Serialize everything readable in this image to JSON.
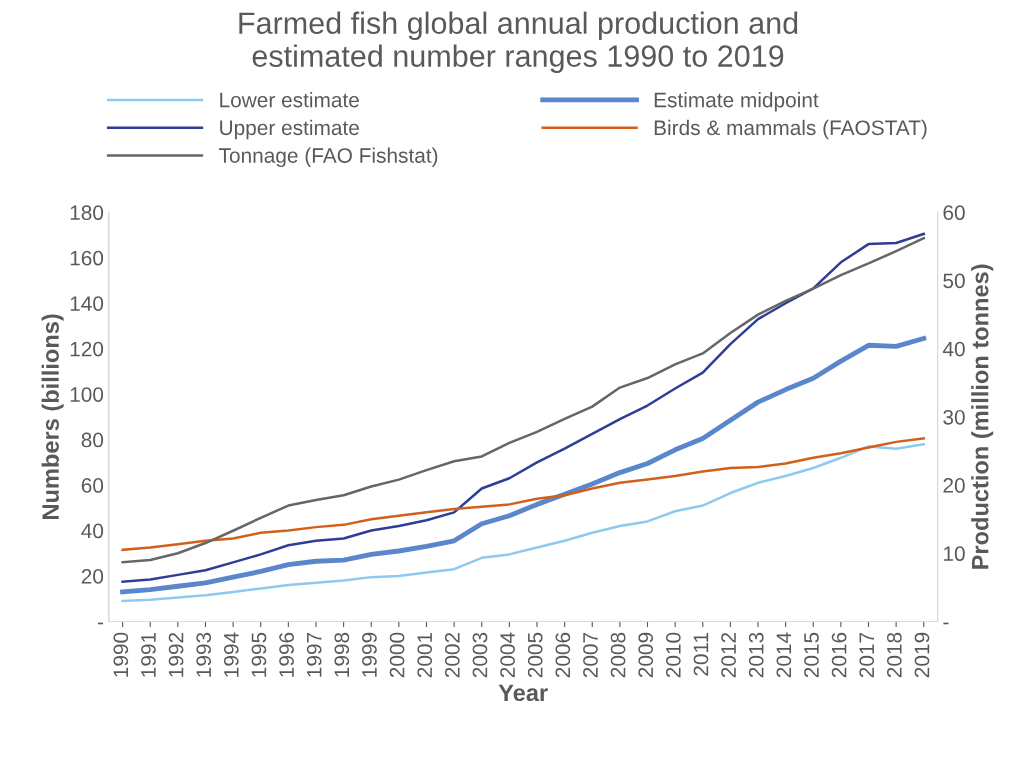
{
  "chart_data": {
    "type": "line",
    "title": "Farmed fish global annual production and\nestimated number ranges 1990 to 2019",
    "xlabel": "Year",
    "ylabel": "Numbers (billions)",
    "y2label": "Production (million tonnes)",
    "categories": [
      "1990",
      "1991",
      "1992",
      "1993",
      "1994",
      "1995",
      "1996",
      "1997",
      "1998",
      "1999",
      "2000",
      "2001",
      "2002",
      "2003",
      "2004",
      "2005",
      "2006",
      "2007",
      "2008",
      "2009",
      "2010",
      "2011",
      "2012",
      "2013",
      "2014",
      "2015",
      "2016",
      "2017",
      "2018",
      "2019"
    ],
    "series": [
      {
        "name": "Lower estimate",
        "color": "#8fc9f0",
        "values": [
          9,
          9.5,
          10.5,
          11.5,
          13,
          14.5,
          16,
          17,
          18,
          19.5,
          20,
          21.5,
          23,
          28,
          29.5,
          32.5,
          35.5,
          39,
          42,
          44,
          48.5,
          51,
          56.5,
          61,
          64,
          67.5,
          72,
          77,
          76,
          78
        ]
      },
      {
        "name": "Estimate midpoint",
        "color": "#5a86cc",
        "values": [
          13,
          14,
          15.5,
          17,
          19.5,
          22,
          25,
          26.5,
          27,
          29.5,
          31,
          33,
          35.5,
          43,
          46.5,
          51.5,
          56,
          60.5,
          65.5,
          69.5,
          75.5,
          80.5,
          88.5,
          96.5,
          102,
          107,
          114.5,
          121.5,
          121,
          124.5
        ]
      },
      {
        "name": "Upper estimate",
        "color": "#2e3d96",
        "values": [
          17.5,
          18.5,
          20.5,
          22.5,
          26,
          29.5,
          33.5,
          35.5,
          36.5,
          40,
          42,
          44.5,
          48,
          58.5,
          63,
          70,
          76,
          82.5,
          89,
          95,
          102.5,
          109.5,
          122,
          133,
          140,
          146.5,
          158,
          166,
          166.5,
          170.5
        ]
      },
      {
        "name": "Birds & mammals (FAOSTAT)",
        "color": "#d2601a",
        "values": [
          31.5,
          32.5,
          34,
          35.5,
          36.5,
          39,
          40,
          41.5,
          42.5,
          45,
          46.5,
          48,
          49.5,
          50.5,
          51.5,
          54,
          55.5,
          58.5,
          61,
          62.5,
          64,
          66,
          67.5,
          68,
          69.5,
          72,
          74,
          76.5,
          79,
          80.5
        ]
      },
      {
        "name": "Tonnage (FAO Fishstat)",
        "color": "#666666",
        "axis": "y2",
        "values": [
          8.7,
          9,
          10,
          11.5,
          13.3,
          15.2,
          17,
          17.8,
          18.5,
          19.8,
          20.8,
          22.2,
          23.5,
          24.2,
          26.2,
          27.8,
          29.7,
          31.5,
          34.3,
          35.7,
          37.7,
          39.3,
          42.3,
          45,
          47,
          48.8,
          50.8,
          52.5,
          54.3,
          56.2
        ]
      }
    ],
    "ylim": [
      0,
      180
    ],
    "yticks": [
      {
        "value": 0,
        "label": "-"
      },
      20,
      40,
      60,
      80,
      100,
      120,
      140,
      160,
      180
    ],
    "y2lim": [
      0,
      60
    ],
    "y2ticks": [
      {
        "value": 0,
        "label": "-"
      },
      10,
      20,
      30,
      40,
      50,
      60
    ],
    "legend": "top",
    "grid": false,
    "marker": "none",
    "line_style": "solid"
  }
}
